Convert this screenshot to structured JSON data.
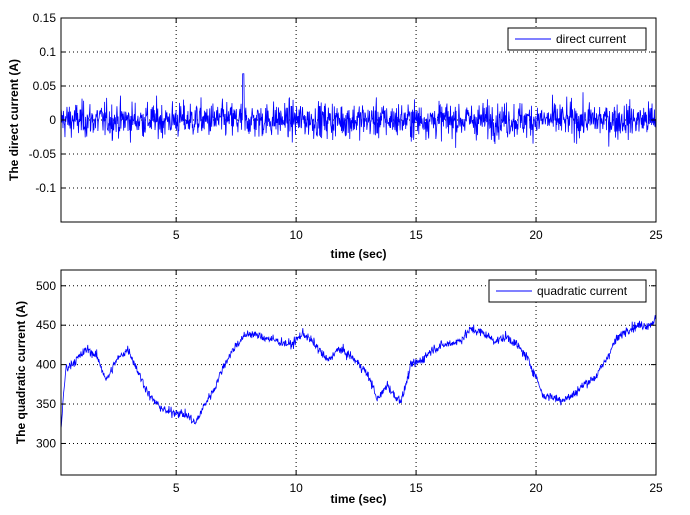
{
  "figure": {
    "colors": {
      "series": "#0000ff",
      "axes": "#000000",
      "grid": "#000000",
      "background": "#ffffff"
    }
  },
  "chart_data": [
    {
      "type": "line",
      "title": "",
      "xlabel": "time (sec)",
      "ylabel": "The direct current (A)",
      "xlim": [
        0.2,
        25
      ],
      "ylim": [
        -0.15,
        0.15
      ],
      "xticks": [
        5,
        10,
        15,
        20,
        25
      ],
      "xtick_labels": [
        "5",
        "10",
        "15",
        "20",
        "25"
      ],
      "yticks": [
        -0.1,
        -0.05,
        0,
        0.05,
        0.1,
        0.15
      ],
      "ytick_labels": [
        "-0.1",
        "-0.05",
        "0",
        "0.05",
        "0.1",
        "0.15"
      ],
      "grid": true,
      "legend_position": "top-right",
      "series": [
        {
          "name": "direct current",
          "color": "#0000ff",
          "description": "zero-mean noise, mostly within ±0.05 A, peaks near ±0.065 A",
          "x": [
            0.2,
            1,
            2,
            3,
            4,
            5,
            6,
            7,
            7.8,
            9,
            10,
            11,
            12,
            13,
            14,
            15,
            16,
            17,
            18,
            19,
            20,
            21,
            22,
            23,
            24,
            25
          ],
          "y": [
            0,
            0.05,
            -0.05,
            0.055,
            -0.06,
            0.05,
            -0.05,
            0.055,
            0.068,
            -0.05,
            0.05,
            -0.055,
            0.05,
            -0.06,
            0.05,
            -0.05,
            0.05,
            -0.055,
            0.05,
            -0.05,
            0.052,
            -0.05,
            0.05,
            -0.055,
            0.05,
            0
          ]
        }
      ]
    },
    {
      "type": "line",
      "title": "",
      "xlabel": "time (sec)",
      "ylabel": "The quadratic current (A)",
      "xlim": [
        0.2,
        25
      ],
      "ylim": [
        260,
        520
      ],
      "xticks": [
        5,
        10,
        15,
        20,
        25
      ],
      "xtick_labels": [
        "5",
        "10",
        "15",
        "20",
        "25"
      ],
      "yticks": [
        300,
        350,
        400,
        450,
        500
      ],
      "ytick_labels": [
        "300",
        "350",
        "400",
        "450",
        "500"
      ],
      "grid": true,
      "legend_position": "top-right",
      "series": [
        {
          "name": "quadratic current",
          "color": "#0000ff",
          "x": [
            0.2,
            0.4,
            0.8,
            1.3,
            1.7,
            2.1,
            2.5,
            3.0,
            3.5,
            3.9,
            4.2,
            4.6,
            5.0,
            5.5,
            5.8,
            6.2,
            6.6,
            7.0,
            7.5,
            8.0,
            8.6,
            9.2,
            9.8,
            10.3,
            10.8,
            11.3,
            11.8,
            12.3,
            12.8,
            13.1,
            13.4,
            13.8,
            14.1,
            14.4,
            14.8,
            15.2,
            15.7,
            16.2,
            16.8,
            17.3,
            17.8,
            18.3,
            18.8,
            19.2,
            19.6,
            20.0,
            20.3,
            20.6,
            21.0,
            21.5,
            22.0,
            22.5,
            22.9,
            23.3,
            23.8,
            24.3,
            24.7,
            25.0
          ],
          "y": [
            320,
            395,
            405,
            420,
            410,
            380,
            405,
            420,
            385,
            360,
            350,
            340,
            340,
            335,
            325,
            350,
            370,
            400,
            425,
            440,
            435,
            430,
            425,
            440,
            425,
            405,
            420,
            410,
            395,
            380,
            355,
            375,
            360,
            355,
            400,
            405,
            420,
            425,
            430,
            445,
            440,
            430,
            435,
            425,
            410,
            385,
            360,
            360,
            355,
            360,
            375,
            385,
            405,
            430,
            445,
            450,
            450,
            458
          ]
        }
      ]
    }
  ]
}
